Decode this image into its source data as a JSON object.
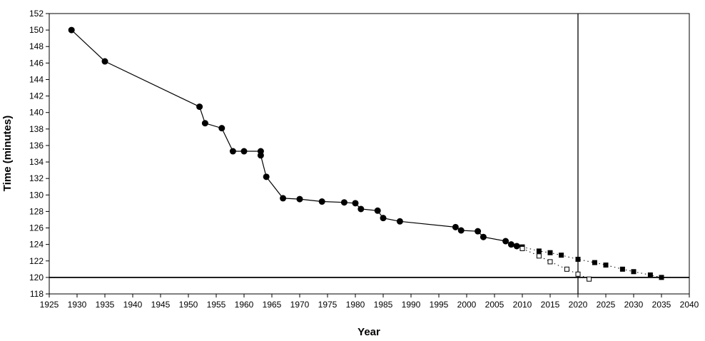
{
  "chart_data": {
    "type": "scatter",
    "xlabel": "Year",
    "ylabel": "Time (minutes)",
    "xlim": [
      1925,
      2040
    ],
    "ylim": [
      118,
      152
    ],
    "x_ticks": [
      1925,
      1930,
      1935,
      1940,
      1945,
      1950,
      1955,
      1960,
      1965,
      1970,
      1975,
      1980,
      1985,
      1990,
      1995,
      2000,
      2005,
      2010,
      2015,
      2020,
      2025,
      2030,
      2035,
      2040
    ],
    "y_ticks": [
      118,
      120,
      122,
      124,
      126,
      128,
      130,
      132,
      134,
      136,
      138,
      140,
      142,
      144,
      146,
      148,
      150,
      152
    ],
    "grid": false,
    "legend": "none",
    "reference_lines": {
      "vertical_x": 2020,
      "horizontal_y": 120
    },
    "series": [
      {
        "marker": "filled-circle",
        "line": "solid",
        "color": "#000000",
        "points": [
          [
            1929,
            150.0
          ],
          [
            1935,
            146.2
          ],
          [
            1952,
            140.7
          ],
          [
            1953,
            138.7
          ],
          [
            1956,
            138.1
          ],
          [
            1958,
            135.3
          ],
          [
            1960,
            135.3
          ],
          [
            1963,
            135.3
          ],
          [
            1963,
            134.8
          ],
          [
            1964,
            132.2
          ],
          [
            1967,
            129.6
          ],
          [
            1970,
            129.5
          ],
          [
            1974,
            129.2
          ],
          [
            1978,
            129.1
          ],
          [
            1980,
            129.0
          ],
          [
            1981,
            128.3
          ],
          [
            1984,
            128.1
          ],
          [
            1985,
            127.2
          ],
          [
            1988,
            126.8
          ],
          [
            1998,
            126.1
          ],
          [
            1999,
            125.7
          ],
          [
            2002,
            125.6
          ],
          [
            2003,
            124.9
          ],
          [
            2007,
            124.4
          ],
          [
            2008,
            124.0
          ],
          [
            2009,
            123.8
          ]
        ]
      },
      {
        "marker": "filled-square",
        "line": "dotted",
        "color": "#000000",
        "points": [
          [
            2010,
            123.7
          ],
          [
            2013,
            123.2
          ],
          [
            2015,
            123.0
          ],
          [
            2017,
            122.7
          ],
          [
            2020,
            122.2
          ],
          [
            2023,
            121.8
          ],
          [
            2025,
            121.5
          ],
          [
            2028,
            121.0
          ],
          [
            2030,
            120.7
          ],
          [
            2033,
            120.3
          ],
          [
            2035,
            120.0
          ]
        ]
      },
      {
        "marker": "open-square",
        "line": "dotted",
        "color": "#000000",
        "points": [
          [
            2010,
            123.5
          ],
          [
            2013,
            122.6
          ],
          [
            2015,
            121.9
          ],
          [
            2018,
            121.0
          ],
          [
            2020,
            120.4
          ],
          [
            2022,
            119.8
          ]
        ]
      }
    ]
  }
}
